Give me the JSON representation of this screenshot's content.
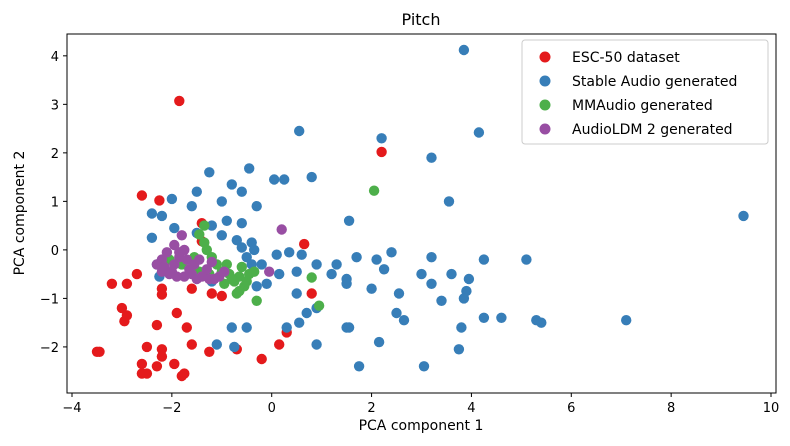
{
  "chart_data": {
    "type": "scatter",
    "title": "Pitch",
    "xlabel": "PCA component 1",
    "ylabel": "PCA component 2",
    "xlim": [
      -4.1,
      10.1
    ],
    "ylim": [
      -2.95,
      4.45
    ],
    "xticks": [
      -4,
      -2,
      0,
      2,
      4,
      6,
      8,
      10
    ],
    "yticks": [
      -2,
      -1,
      0,
      1,
      2,
      3,
      4
    ],
    "grid": false,
    "legend_position": "top-right",
    "series": [
      {
        "name": "ESC-50 dataset",
        "color": "#e41a1c",
        "points": [
          [
            -1.85,
            3.07
          ],
          [
            2.2,
            2.02
          ],
          [
            -2.6,
            1.12
          ],
          [
            -2.25,
            1.02
          ],
          [
            -1.4,
            0.55
          ],
          [
            0.65,
            0.12
          ],
          [
            -1.4,
            0.18
          ],
          [
            -3.2,
            -0.7
          ],
          [
            -2.9,
            -0.7
          ],
          [
            -2.7,
            -0.5
          ],
          [
            -2.2,
            -0.8
          ],
          [
            -2.2,
            -0.92
          ],
          [
            -1.6,
            -0.8
          ],
          [
            -1.2,
            -0.9
          ],
          [
            -1.0,
            -0.95
          ],
          [
            -3.0,
            -1.2
          ],
          [
            -2.95,
            -1.47
          ],
          [
            -2.9,
            -1.35
          ],
          [
            -1.9,
            -1.3
          ],
          [
            -1.7,
            -1.6
          ],
          [
            -2.3,
            -1.55
          ],
          [
            -1.6,
            -1.95
          ],
          [
            -2.5,
            -2.0
          ],
          [
            -2.2,
            -2.05
          ],
          [
            -3.5,
            -2.1
          ],
          [
            -3.45,
            -2.1
          ],
          [
            -2.6,
            -2.35
          ],
          [
            -2.6,
            -2.55
          ],
          [
            -2.5,
            -2.55
          ],
          [
            -2.3,
            -2.4
          ],
          [
            -2.2,
            -2.2
          ],
          [
            -1.95,
            -2.35
          ],
          [
            -1.75,
            -2.55
          ],
          [
            -1.8,
            -2.6
          ],
          [
            -1.25,
            -2.1
          ],
          [
            -0.7,
            -2.05
          ],
          [
            -0.2,
            -2.25
          ],
          [
            0.3,
            -1.7
          ],
          [
            0.8,
            -0.9
          ],
          [
            0.15,
            -1.95
          ]
        ]
      },
      {
        "name": "Stable Audio generated",
        "color": "#377eb8",
        "points": [
          [
            3.85,
            4.12
          ],
          [
            4.15,
            2.42
          ],
          [
            0.55,
            2.45
          ],
          [
            2.2,
            2.3
          ],
          [
            3.2,
            1.9
          ],
          [
            9.45,
            0.7
          ],
          [
            -1.25,
            1.6
          ],
          [
            -0.45,
            1.68
          ],
          [
            0.05,
            1.45
          ],
          [
            0.25,
            1.45
          ],
          [
            0.8,
            1.5
          ],
          [
            -0.8,
            1.35
          ],
          [
            -0.6,
            1.2
          ],
          [
            -0.3,
            0.9
          ],
          [
            -1.5,
            1.2
          ],
          [
            -1.0,
            1.0
          ],
          [
            -1.6,
            0.9
          ],
          [
            -2.0,
            1.05
          ],
          [
            -2.2,
            0.7
          ],
          [
            -2.4,
            0.75
          ],
          [
            -1.95,
            0.45
          ],
          [
            -1.5,
            0.35
          ],
          [
            -1.2,
            0.5
          ],
          [
            -0.9,
            0.6
          ],
          [
            -0.6,
            0.55
          ],
          [
            -1.0,
            0.3
          ],
          [
            -0.7,
            0.2
          ],
          [
            -0.4,
            0.15
          ],
          [
            -0.6,
            0.05
          ],
          [
            -0.35,
            0.0
          ],
          [
            -0.5,
            -0.15
          ],
          [
            -0.2,
            -0.3
          ],
          [
            0.1,
            -0.1
          ],
          [
            0.35,
            -0.05
          ],
          [
            0.6,
            -0.1
          ],
          [
            0.9,
            -0.3
          ],
          [
            0.5,
            -0.45
          ],
          [
            0.15,
            -0.5
          ],
          [
            -0.1,
            -0.7
          ],
          [
            -0.3,
            -0.75
          ],
          [
            1.3,
            -0.3
          ],
          [
            1.5,
            -0.6
          ],
          [
            1.7,
            -0.15
          ],
          [
            1.55,
            0.6
          ],
          [
            2.1,
            -0.2
          ],
          [
            2.25,
            -0.4
          ],
          [
            2.0,
            -0.8
          ],
          [
            2.4,
            -0.05
          ],
          [
            2.55,
            -0.9
          ],
          [
            3.0,
            -0.5
          ],
          [
            3.2,
            -0.15
          ],
          [
            3.55,
            1.0
          ],
          [
            3.6,
            -0.5
          ],
          [
            3.95,
            -0.6
          ],
          [
            4.25,
            -0.2
          ],
          [
            3.2,
            -0.7
          ],
          [
            3.4,
            -1.05
          ],
          [
            3.9,
            -0.85
          ],
          [
            3.85,
            -1.0
          ],
          [
            5.1,
            -0.2
          ],
          [
            4.25,
            -1.4
          ],
          [
            4.6,
            -1.4
          ],
          [
            5.3,
            -1.45
          ],
          [
            5.4,
            -1.5
          ],
          [
            7.1,
            -1.45
          ],
          [
            2.5,
            -1.3
          ],
          [
            2.65,
            -1.45
          ],
          [
            1.5,
            -1.6
          ],
          [
            1.55,
            -1.6
          ],
          [
            2.15,
            -1.9
          ],
          [
            3.8,
            -1.6
          ],
          [
            3.75,
            -2.05
          ],
          [
            3.05,
            -2.4
          ],
          [
            1.75,
            -2.4
          ],
          [
            0.55,
            -1.5
          ],
          [
            0.7,
            -1.3
          ],
          [
            0.9,
            -1.2
          ],
          [
            0.5,
            -0.9
          ],
          [
            1.2,
            -0.5
          ],
          [
            1.5,
            -0.7
          ],
          [
            0.9,
            -1.95
          ],
          [
            0.3,
            -1.6
          ],
          [
            -0.5,
            -1.6
          ],
          [
            -0.8,
            -1.6
          ],
          [
            -0.75,
            -2.0
          ],
          [
            -1.1,
            -1.95
          ],
          [
            -0.4,
            -0.3
          ],
          [
            -1.2,
            -0.65
          ],
          [
            -2.3,
            -0.3
          ],
          [
            -2.25,
            -0.55
          ],
          [
            -2.4,
            0.25
          ]
        ]
      },
      {
        "name": "MMAudio generated",
        "color": "#4daf4a",
        "points": [
          [
            2.05,
            1.22
          ],
          [
            0.8,
            -0.57
          ],
          [
            0.95,
            -1.15
          ],
          [
            -0.3,
            -1.05
          ],
          [
            -0.7,
            -0.9
          ],
          [
            -1.35,
            0.5
          ],
          [
            -1.45,
            0.32
          ],
          [
            -1.35,
            0.15
          ],
          [
            -1.3,
            0.0
          ],
          [
            -1.2,
            -0.15
          ],
          [
            -1.1,
            -0.3
          ],
          [
            -1.0,
            -0.45
          ],
          [
            -0.85,
            -0.5
          ],
          [
            -0.75,
            -0.65
          ],
          [
            -0.55,
            -0.75
          ],
          [
            -0.65,
            -0.55
          ],
          [
            -0.45,
            -0.5
          ],
          [
            -0.6,
            -0.35
          ],
          [
            -0.9,
            -0.3
          ],
          [
            -0.8,
            -0.6
          ],
          [
            -1.25,
            -0.5
          ],
          [
            -1.45,
            -0.45
          ],
          [
            -1.6,
            -0.4
          ],
          [
            -1.8,
            -0.3
          ],
          [
            -2.05,
            -0.2
          ],
          [
            -1.55,
            -0.15
          ],
          [
            -0.95,
            -0.7
          ],
          [
            -0.65,
            -0.85
          ],
          [
            -0.5,
            -0.65
          ],
          [
            -0.35,
            -0.45
          ]
        ]
      },
      {
        "name": "AudioLDM 2 generated",
        "color": "#984ea3",
        "points": [
          [
            0.2,
            0.42
          ],
          [
            -0.05,
            -0.45
          ],
          [
            -1.8,
            0.3
          ],
          [
            -2.1,
            -0.05
          ],
          [
            -2.2,
            -0.2
          ],
          [
            -2.3,
            -0.3
          ],
          [
            -2.15,
            -0.35
          ],
          [
            -2.0,
            -0.45
          ],
          [
            -1.9,
            -0.55
          ],
          [
            -1.75,
            -0.55
          ],
          [
            -1.6,
            -0.5
          ],
          [
            -1.5,
            -0.6
          ],
          [
            -1.4,
            -0.55
          ],
          [
            -1.25,
            -0.6
          ],
          [
            -1.15,
            -0.6
          ],
          [
            -1.05,
            -0.55
          ],
          [
            -0.95,
            -0.45
          ],
          [
            -1.3,
            -0.4
          ],
          [
            -1.55,
            -0.3
          ],
          [
            -1.7,
            -0.2
          ],
          [
            -1.85,
            -0.15
          ],
          [
            -1.95,
            -0.3
          ],
          [
            -2.05,
            -0.5
          ],
          [
            -2.2,
            -0.45
          ],
          [
            -1.65,
            -0.4
          ],
          [
            -1.45,
            -0.2
          ],
          [
            -1.2,
            -0.25
          ],
          [
            -1.75,
            0.0
          ],
          [
            -1.95,
            0.1
          ],
          [
            -1.85,
            -0.05
          ]
        ]
      }
    ]
  }
}
